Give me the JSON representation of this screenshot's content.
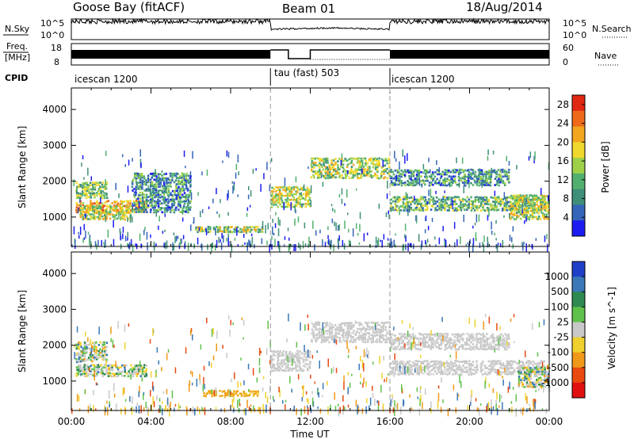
{
  "header": {
    "station": "Goose Bay (fitACF)",
    "beam": "Beam 01",
    "date": "18/Aug/2014"
  },
  "top_panels": {
    "nsky_label": "N.Sky",
    "nsky_ticks": [
      "10^5",
      "10^0"
    ],
    "nsearch_label": "N.Search",
    "nsearch_ticks": [
      "10^5",
      "10^0"
    ],
    "freq_label": "Freq.",
    "freq_unit": "[MHz]",
    "freq_ticks": [
      "18",
      "8"
    ],
    "nave_label": "Nave",
    "nave_ticks": [
      "60",
      "0"
    ],
    "cpid_label": "CPID",
    "cpid_segments": [
      {
        "name": "icescan 1200",
        "start_hour": 0,
        "end_hour": 10
      },
      {
        "name": "tau (fast) 503",
        "start_hour": 10,
        "end_hour": 16
      },
      {
        "name": "icescan 1200",
        "start_hour": 16,
        "end_hour": 24
      }
    ]
  },
  "chart_data": [
    {
      "type": "heatmap",
      "title": "",
      "xlabel": "",
      "ylabel": "Slant Range [km]",
      "xlim": [
        0,
        24
      ],
      "ylim": [
        180,
        4600
      ],
      "yticks": [
        1000,
        2000,
        3000,
        4000
      ],
      "colorbar": {
        "label": "Power [dB]",
        "ticks": [
          4,
          8,
          12,
          16,
          20,
          24,
          28
        ],
        "range": [
          0,
          30
        ],
        "colors": [
          "#1c1cf0",
          "#3465b8",
          "#3f8f78",
          "#52b06e",
          "#9fd04a",
          "#f0d82c",
          "#f2a51e",
          "#ee6a1a",
          "#e02812"
        ]
      },
      "echo_regions": [
        {
          "t0": 0.2,
          "t1": 3.8,
          "r0": 1100,
          "r1": 1450,
          "level": 0.75
        },
        {
          "t0": 0.4,
          "t1": 3.0,
          "r0": 900,
          "r1": 1300,
          "level": 0.55
        },
        {
          "t0": 0.2,
          "t1": 1.8,
          "r0": 1500,
          "r1": 1950,
          "level": 0.45
        },
        {
          "t0": 3.0,
          "t1": 6.0,
          "r0": 1100,
          "r1": 2200,
          "level": 0.3
        },
        {
          "t0": 6.2,
          "t1": 9.6,
          "r0": 550,
          "r1": 750,
          "level": 0.5
        },
        {
          "t0": 10.0,
          "t1": 12.0,
          "r0": 1250,
          "r1": 1850,
          "level": 0.55
        },
        {
          "t0": 12.0,
          "t1": 16.0,
          "r0": 2050,
          "r1": 2650,
          "level": 0.5
        },
        {
          "t0": 16.0,
          "t1": 23.8,
          "r0": 1150,
          "r1": 1550,
          "level": 0.4
        },
        {
          "t0": 16.0,
          "t1": 22.0,
          "r0": 1850,
          "r1": 2350,
          "level": 0.3
        },
        {
          "t0": 22.0,
          "t1": 24.0,
          "r0": 900,
          "r1": 1600,
          "level": 0.55
        }
      ]
    },
    {
      "type": "heatmap",
      "title": "",
      "xlabel": "Time UT",
      "ylabel": "Slant Range [km]",
      "xlim": [
        0,
        24
      ],
      "ylim": [
        180,
        4600
      ],
      "xticks": [
        "00:00",
        "04:00",
        "08:00",
        "12:00",
        "16:00",
        "20:00",
        "00:00"
      ],
      "yticks": [
        1000,
        2000,
        3000,
        4000
      ],
      "colorbar": {
        "label": "Velocity [m s^-1]",
        "ticks": [
          "1000",
          "500",
          "100",
          "25",
          "-25",
          "-100",
          "-500",
          "-1000"
        ],
        "colors": [
          "#2040c8",
          "#3a78b8",
          "#2e8a50",
          "#5fc04a",
          "#c8c8c8",
          "#f0d02c",
          "#f09818",
          "#e84a10",
          "#e01010"
        ]
      },
      "echo_regions": [
        {
          "t0": 0.2,
          "t1": 3.8,
          "r0": 1100,
          "r1": 1450,
          "class": "mixed"
        },
        {
          "t0": 0.2,
          "t1": 1.8,
          "r0": 1500,
          "r1": 2100,
          "class": "mixed"
        },
        {
          "t0": 6.6,
          "t1": 9.4,
          "r0": 550,
          "r1": 750,
          "class": "orange"
        },
        {
          "t0": 10.0,
          "t1": 12.0,
          "r0": 1250,
          "r1": 1850,
          "class": "ground"
        },
        {
          "t0": 12.0,
          "t1": 16.0,
          "r0": 2050,
          "r1": 2650,
          "class": "ground"
        },
        {
          "t0": 16.0,
          "t1": 23.8,
          "r0": 1150,
          "r1": 1550,
          "class": "ground"
        },
        {
          "t0": 16.0,
          "t1": 22.0,
          "r0": 1850,
          "r1": 2350,
          "class": "ground"
        },
        {
          "t0": 22.4,
          "t1": 24.0,
          "r0": 800,
          "r1": 1400,
          "class": "mixed"
        }
      ]
    }
  ]
}
